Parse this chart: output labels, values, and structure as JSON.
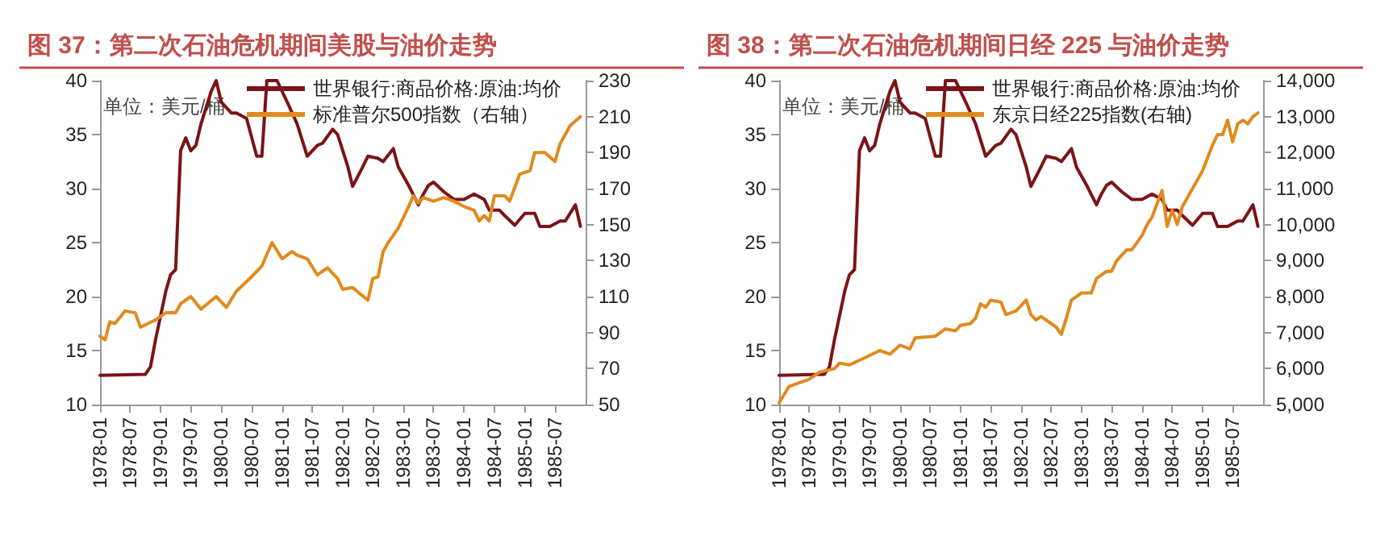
{
  "chart_data": [
    {
      "type": "line",
      "title": "图 37：第二次石油危机期间美股与油价走势",
      "annotations": [
        "单位：美元/桶"
      ],
      "legend": "top",
      "grid": false,
      "marker": "none",
      "line_style": "solid",
      "xlim": [
        "1978-01",
        "1986-01"
      ],
      "xticks": [
        "1978-01",
        "1978-07",
        "1979-01",
        "1979-07",
        "1980-01",
        "1980-07",
        "1981-01",
        "1981-07",
        "1982-01",
        "1982-07",
        "1983-01",
        "1983-07",
        "1984-01",
        "1984-07",
        "1985-01",
        "1985-07"
      ],
      "ylim": [
        10,
        40
      ],
      "yticks": [
        10,
        15,
        20,
        25,
        30,
        35,
        40
      ],
      "y2lim": [
        50,
        230
      ],
      "y2ticks": [
        50,
        70,
        90,
        110,
        130,
        150,
        170,
        190,
        210,
        230
      ],
      "series": [
        {
          "name": "世界银行:商品价格:原油:均价",
          "color": "#7b1416",
          "x": [
            "1978-01",
            "1978-10",
            "1978-11",
            "1978-12",
            "1979-02",
            "1979-03",
            "1979-04",
            "1979-05",
            "1979-06",
            "1979-07",
            "1979-08",
            "1979-09",
            "1979-11",
            "1979-12",
            "1980-01",
            "1980-03",
            "1980-04",
            "1980-06",
            "1980-08",
            "1980-09",
            "1980-10",
            "1980-12",
            "1981-02",
            "1981-04",
            "1981-06",
            "1981-08",
            "1981-09",
            "1981-11",
            "1981-12",
            "1982-02",
            "1982-03",
            "1982-05",
            "1982-06",
            "1982-08",
            "1982-09",
            "1982-11",
            "1982-12",
            "1983-02",
            "1983-04",
            "1983-05",
            "1983-06",
            "1983-07",
            "1983-09",
            "1983-11",
            "1984-01",
            "1984-03",
            "1984-05",
            "1984-06",
            "1984-08",
            "1984-09",
            "1984-11",
            "1985-01",
            "1985-03",
            "1985-04",
            "1985-06",
            "1985-08",
            "1985-09",
            "1985-11",
            "1985-12"
          ],
          "values": [
            12.7,
            12.8,
            13.5,
            16,
            20.5,
            22,
            22.5,
            33.5,
            34.7,
            33.5,
            34,
            36,
            39,
            40,
            38,
            37,
            37,
            36.5,
            33,
            33,
            40,
            40,
            38,
            36,
            33,
            34,
            34.2,
            35.5,
            35,
            32,
            30.2,
            32,
            33,
            32.8,
            32.5,
            33.7,
            32,
            30.3,
            28.5,
            29.5,
            30.3,
            30.6,
            29.7,
            29,
            29,
            29.5,
            29,
            28,
            28,
            27.5,
            26.6,
            27.7,
            27.7,
            26.5,
            26.5,
            27,
            27,
            28.5,
            26.5
          ]
        },
        {
          "name": "标准普尔500指数（右轴）",
          "color": "#e08a1e",
          "axis": "y2",
          "x": [
            "1978-01",
            "1978-02",
            "1978-03",
            "1978-04",
            "1978-06",
            "1978-08",
            "1978-09",
            "1978-12",
            "1979-02",
            "1979-04",
            "1979-05",
            "1979-07",
            "1979-09",
            "1979-12",
            "1980-02",
            "1980-04",
            "1980-07",
            "1980-09",
            "1980-11",
            "1981-01",
            "1981-03",
            "1981-04",
            "1981-06",
            "1981-08",
            "1981-10",
            "1981-12",
            "1982-01",
            "1982-03",
            "1982-06",
            "1982-07",
            "1982-08",
            "1982-09",
            "1982-10",
            "1982-12",
            "1983-02",
            "1983-03",
            "1983-04",
            "1983-05",
            "1983-07",
            "1983-09",
            "1983-11",
            "1984-01",
            "1984-03",
            "1984-04",
            "1984-05",
            "1984-06",
            "1984-07",
            "1984-09",
            "1984-10",
            "1984-12",
            "1985-02",
            "1985-03",
            "1985-05",
            "1985-07",
            "1985-08",
            "1985-10",
            "1985-12"
          ],
          "values": [
            88,
            86,
            96,
            95,
            102,
            101,
            93,
            97,
            101,
            101,
            106,
            110,
            103,
            110,
            104,
            113,
            121,
            127,
            140,
            131,
            135,
            133,
            131,
            122,
            126,
            120,
            114,
            115,
            108,
            120,
            121,
            135,
            140,
            148,
            160,
            166,
            162,
            165,
            163,
            165,
            163,
            160,
            158,
            152,
            155,
            152,
            166,
            166,
            163,
            178,
            180,
            190,
            190,
            185,
            195,
            205,
            210
          ]
        }
      ]
    },
    {
      "type": "line",
      "title": "图 38：第二次石油危机期间日经 225 与油价走势",
      "annotations": [
        "单位：美元/桶"
      ],
      "legend": "top",
      "grid": false,
      "marker": "none",
      "line_style": "solid",
      "xlim": [
        "1978-01",
        "1986-01"
      ],
      "xticks": [
        "1978-01",
        "1978-07",
        "1979-01",
        "1979-07",
        "1980-01",
        "1980-07",
        "1981-01",
        "1981-07",
        "1982-01",
        "1982-07",
        "1983-01",
        "1983-07",
        "1984-01",
        "1984-07",
        "1985-01",
        "1985-07"
      ],
      "ylim": [
        10,
        40
      ],
      "yticks": [
        10,
        15,
        20,
        25,
        30,
        35,
        40
      ],
      "y2lim": [
        5000,
        14000
      ],
      "y2ticks": [
        {
          "value": 5000,
          "label": "5,000"
        },
        {
          "value": 6000,
          "label": "6,000"
        },
        {
          "value": 7000,
          "label": "7,000"
        },
        {
          "value": 8000,
          "label": "8,000"
        },
        {
          "value": 9000,
          "label": "9,000"
        },
        {
          "value": 10000,
          "label": "10,000"
        },
        {
          "value": 11000,
          "label": "11,000"
        },
        {
          "value": 12000,
          "label": "12,000"
        },
        {
          "value": 13000,
          "label": "13,000"
        },
        {
          "value": 14000,
          "label": "14,000"
        }
      ],
      "series": [
        {
          "name": "世界银行:商品价格:原油:均价",
          "color": "#7b1416",
          "x": [
            "1978-01",
            "1978-10",
            "1978-11",
            "1978-12",
            "1979-02",
            "1979-03",
            "1979-04",
            "1979-05",
            "1979-06",
            "1979-07",
            "1979-08",
            "1979-09",
            "1979-11",
            "1979-12",
            "1980-01",
            "1980-03",
            "1980-04",
            "1980-06",
            "1980-08",
            "1980-09",
            "1980-10",
            "1980-12",
            "1981-02",
            "1981-04",
            "1981-06",
            "1981-08",
            "1981-09",
            "1981-11",
            "1981-12",
            "1982-02",
            "1982-03",
            "1982-05",
            "1982-06",
            "1982-08",
            "1982-09",
            "1982-11",
            "1982-12",
            "1983-02",
            "1983-04",
            "1983-05",
            "1983-06",
            "1983-07",
            "1983-09",
            "1983-11",
            "1984-01",
            "1984-03",
            "1984-05",
            "1984-06",
            "1984-08",
            "1984-09",
            "1984-11",
            "1985-01",
            "1985-03",
            "1985-04",
            "1985-06",
            "1985-08",
            "1985-09",
            "1985-11",
            "1985-12"
          ],
          "values": [
            12.7,
            12.8,
            13.5,
            16,
            20.5,
            22,
            22.5,
            33.5,
            34.7,
            33.5,
            34,
            36,
            39,
            40,
            38,
            37,
            37,
            36.5,
            33,
            33,
            40,
            40,
            38,
            36,
            33,
            34,
            34.2,
            35.5,
            35,
            32,
            30.2,
            32,
            33,
            32.8,
            32.5,
            33.7,
            32,
            30.3,
            28.5,
            29.5,
            30.3,
            30.6,
            29.7,
            29,
            29,
            29.5,
            29,
            28,
            28,
            27.5,
            26.6,
            27.7,
            27.7,
            26.5,
            26.5,
            27,
            27,
            28.5,
            26.5
          ]
        },
        {
          "name": "东京日经225指数(右轴)",
          "color": "#e08a1e",
          "axis": "y2",
          "x": [
            "1978-01",
            "1978-03",
            "1978-05",
            "1978-07",
            "1978-09",
            "1978-12",
            "1979-01",
            "1979-03",
            "1979-06",
            "1979-09",
            "1979-11",
            "1980-01",
            "1980-03",
            "1980-04",
            "1980-08",
            "1980-10",
            "1980-12",
            "1981-01",
            "1981-03",
            "1981-04",
            "1981-05",
            "1981-06",
            "1981-07",
            "1981-09",
            "1981-10",
            "1981-12",
            "1982-02",
            "1982-03",
            "1982-04",
            "1982-05",
            "1982-07",
            "1982-08",
            "1982-09",
            "1982-10",
            "1982-11",
            "1983-01",
            "1983-03",
            "1983-04",
            "1983-06",
            "1983-07",
            "1983-08",
            "1983-10",
            "1983-11",
            "1984-01",
            "1984-02",
            "1984-03",
            "1984-05",
            "1984-06",
            "1984-07",
            "1984-08",
            "1984-09",
            "1984-11",
            "1985-01",
            "1985-03",
            "1985-04",
            "1985-05",
            "1985-06",
            "1985-07",
            "1985-08",
            "1985-09",
            "1985-10",
            "1985-11",
            "1985-12"
          ],
          "values": [
            5050,
            5500,
            5600,
            5700,
            5900,
            6000,
            6150,
            6100,
            6300,
            6500,
            6400,
            6650,
            6550,
            6850,
            6900,
            7100,
            7050,
            7200,
            7250,
            7400,
            7800,
            7700,
            7900,
            7850,
            7500,
            7600,
            7900,
            7500,
            7350,
            7450,
            7250,
            7150,
            6950,
            7400,
            7900,
            8100,
            8100,
            8500,
            8700,
            8700,
            9000,
            9300,
            9300,
            9700,
            10000,
            10200,
            10950,
            9950,
            10400,
            10000,
            10500,
            11000,
            11500,
            12200,
            12500,
            12500,
            12900,
            12300,
            12800,
            12900,
            12800,
            13000,
            13100
          ]
        }
      ]
    }
  ]
}
